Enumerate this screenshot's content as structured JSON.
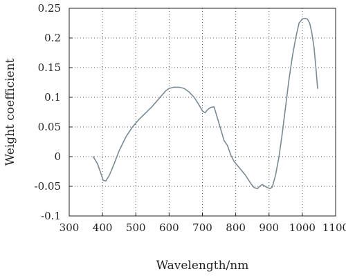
{
  "chart_data": {
    "type": "line",
    "xlabel": "Wavelength/nm",
    "ylabel": "Weight coefficient",
    "xlim": [
      300,
      1100
    ],
    "ylim": [
      -0.1,
      0.25
    ],
    "xticks": [
      300,
      400,
      500,
      600,
      700,
      800,
      900,
      1000,
      1100
    ],
    "yticks": [
      -0.1,
      -0.05,
      0,
      0.05,
      0.1,
      0.15,
      0.2,
      0.25
    ],
    "xtick_labels": [
      "300",
      "400",
      "500",
      "600",
      "700",
      "800",
      "900",
      "1000",
      "1100"
    ],
    "ytick_labels": [
      "-0.1",
      "-0.05",
      "0",
      "0.05",
      "0.1",
      "0.15",
      "0.2",
      "0.25"
    ],
    "grid": true,
    "grid_style": "dotted",
    "line_color": "#7a8a94",
    "series": [
      {
        "x": [
          372,
          385,
          395,
          402,
          410,
          420,
          435,
          450,
          470,
          490,
          510,
          530,
          550,
          570,
          590,
          600,
          615,
          630,
          645,
          660,
          675,
          690,
          700,
          708,
          715,
          725,
          735,
          745,
          755,
          765,
          775,
          785,
          795,
          810,
          830,
          845,
          855,
          865,
          872,
          880,
          888,
          895,
          903,
          910,
          920,
          930,
          940,
          950,
          960,
          970,
          980,
          990,
          1000,
          1008,
          1015,
          1022,
          1028,
          1035,
          1040,
          1046
        ],
        "y": [
          0.0,
          -0.012,
          -0.028,
          -0.04,
          -0.041,
          -0.032,
          -0.012,
          0.01,
          0.033,
          0.05,
          0.063,
          0.074,
          0.085,
          0.098,
          0.111,
          0.115,
          0.117,
          0.117,
          0.115,
          0.109,
          0.1,
          0.087,
          0.077,
          0.074,
          0.079,
          0.083,
          0.084,
          0.065,
          0.046,
          0.027,
          0.019,
          0.003,
          -0.008,
          -0.018,
          -0.032,
          -0.045,
          -0.052,
          -0.054,
          -0.05,
          -0.047,
          -0.05,
          -0.052,
          -0.054,
          -0.051,
          -0.03,
          0.0,
          0.04,
          0.085,
          0.13,
          0.168,
          0.2,
          0.225,
          0.232,
          0.233,
          0.232,
          0.225,
          0.21,
          0.185,
          0.155,
          0.115
        ]
      }
    ]
  }
}
